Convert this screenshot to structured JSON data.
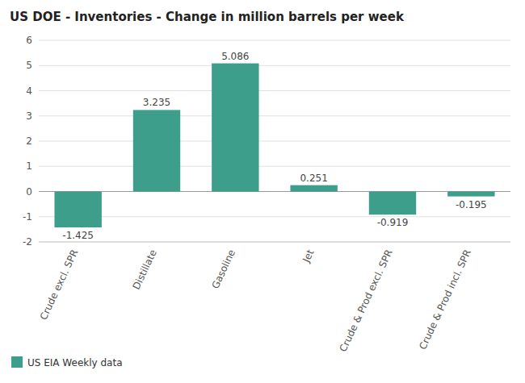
{
  "chart_data": {
    "type": "bar",
    "title": "US DOE - Inventories - Change in million barrels per week",
    "categories": [
      "Crude excl. SPR",
      "Distillate",
      "Gasoline",
      "Jet",
      "Crude & Prod excl. SPR",
      "Crude & Prod incl. SPR"
    ],
    "series": [
      {
        "name": "US EIA Weekly data",
        "color": "#3d9e8c",
        "values": [
          -1.425,
          3.235,
          5.086,
          0.251,
          -0.919,
          -0.195
        ]
      }
    ],
    "ylim": [
      -2,
      6
    ],
    "yticks": [
      -2,
      -1,
      0,
      1,
      2,
      3,
      4,
      5,
      6
    ],
    "grid": true,
    "legend": "lower left",
    "data_labels": true
  }
}
